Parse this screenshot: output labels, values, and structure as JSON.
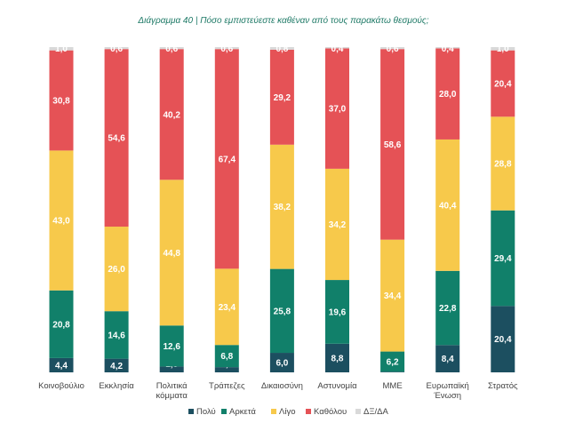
{
  "chart_data": {
    "type": "bar",
    "stacked": true,
    "percent_scale": true,
    "title": "Διάγραμμα 40 | Πόσο εμπιστεύεστε καθέναν από τους παρακάτω θεσμούς;",
    "categories": [
      [
        "Κοινοβούλιο"
      ],
      [
        "Εκκλησία"
      ],
      [
        "Πολιτικά",
        "κόμματα"
      ],
      [
        "Τράπεζες"
      ],
      [
        "Δικαιοσύνη"
      ],
      [
        "Αστυνομία"
      ],
      [
        "ΜΜΕ"
      ],
      [
        "Ευρωπαϊκή",
        "Ένωση"
      ],
      [
        "Στρατός"
      ]
    ],
    "series": [
      {
        "name": "Πολύ",
        "color": "#1c4f60",
        "values": [
          4.4,
          4.2,
          1.8,
          1.6,
          6.0,
          8.8,
          0.2,
          8.4,
          20.4
        ]
      },
      {
        "name": "Αρκετά",
        "color": "#11806a",
        "values": [
          20.8,
          14.6,
          12.6,
          6.8,
          25.8,
          19.6,
          6.2,
          22.8,
          29.4
        ]
      },
      {
        "name": "Λίγο",
        "color": "#f7c94b",
        "values": [
          43.0,
          26.0,
          44.8,
          23.4,
          38.2,
          34.2,
          34.4,
          40.4,
          28.8
        ]
      },
      {
        "name": "Καθόλου",
        "color": "#e55256",
        "values": [
          30.8,
          54.6,
          40.2,
          67.4,
          29.2,
          37.0,
          58.6,
          28.0,
          20.4
        ]
      },
      {
        "name": "ΔΞ/ΔΑ",
        "color": "#d9d9d9",
        "values": [
          1.0,
          0.6,
          0.6,
          0.6,
          0.8,
          0.4,
          0.6,
          0.4,
          1.0
        ]
      }
    ],
    "labels": [
      [
        "4,4",
        "20,8",
        "43,0",
        "30,8",
        "1,0"
      ],
      [
        "4,2",
        "14,6",
        "26,0",
        "54,6",
        "0,6"
      ],
      [
        "1,8",
        "12,6",
        "44,8",
        "40,2",
        "0,6"
      ],
      [
        "1,6",
        "6,8",
        "23,4",
        "67,4",
        "0,6"
      ],
      [
        "6,0",
        "25,8",
        "38,2",
        "29,2",
        "0,8"
      ],
      [
        "8,8",
        "19,6",
        "34,2",
        "37,0",
        "0,4"
      ],
      [
        "0,2",
        "6,2",
        "34,4",
        "58,6",
        "0,6"
      ],
      [
        "8,4",
        "22,8",
        "40,4",
        "28,0",
        "0,4"
      ],
      [
        "20,4",
        "29,4",
        "28,8",
        "20,4",
        "1,0"
      ]
    ],
    "legend_position": "bottom-center"
  }
}
